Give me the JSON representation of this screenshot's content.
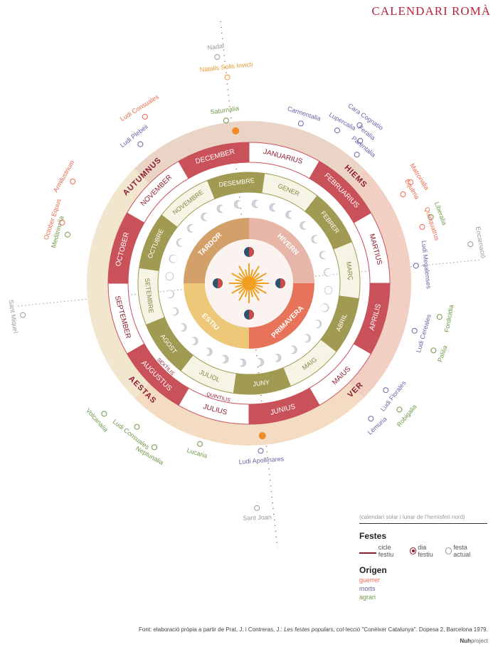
{
  "header": {
    "title": "CALENDARI ROMÀ"
  },
  "colors": {
    "winter": "#c9515a",
    "spring": "#c9515a",
    "summer": "#f0e2c2",
    "autumn": "#c9515a",
    "outerBand": "#e8c9b4",
    "catalanBand": "#a19a53",
    "guerrer": "#e86a4e",
    "morts": "#6e63a8",
    "agrari": "#6f9a4a",
    "cicle": "#8b1e2e",
    "sun": "#f0a020"
  },
  "seasons_latin": [
    {
      "label": "HIEMS"
    },
    {
      "label": "VER"
    },
    {
      "label": "AESTAS"
    },
    {
      "label": "AUTUMNUS"
    }
  ],
  "months_latin": [
    "JANUARIUS",
    "FEBRUARIUS",
    "MARTIUS",
    "APRILIS",
    "MAIUS",
    "JUNIUS",
    "JULIUS",
    "AUGUSTUS",
    "SEPTEMBER",
    "OCTOBER",
    "NOVEMBER",
    "DECEMBER"
  ],
  "months_renamed": [
    {
      "label": "QUINTILIS",
      "month": 6
    },
    {
      "label": "SEXTILIS",
      "month": 7
    }
  ],
  "months_catalan": [
    "GENER",
    "FEBRER",
    "MARÇ",
    "ABRIL",
    "MAIG",
    "JUNY",
    "JULIOL",
    "AGOST",
    "SETEMBRE",
    "OCTUBRE",
    "NOVEMBRE",
    "DESEMBRE"
  ],
  "seasons_catalan": [
    "HIVERN",
    "PRIMAVERA",
    "ESTIU",
    "TARDOR"
  ],
  "festivals": [
    {
      "label": "Nadal",
      "color": "#999999"
    },
    {
      "label": "Natalis Solis Invicti",
      "color": "#e89a2e"
    },
    {
      "label": "Ludi Consuales",
      "color": "#e86a4e"
    },
    {
      "label": "Saturnalia",
      "color": "#6f9a4a"
    },
    {
      "label": "Carmentalia",
      "color": "#6e63a8"
    },
    {
      "label": "Cara Cognatio",
      "color": "#6e63a8"
    },
    {
      "label": "Lupercalia",
      "color": "#6e63a8"
    },
    {
      "label": "Feralia",
      "color": "#6e63a8"
    },
    {
      "label": "Parentalia",
      "color": "#6e63a8"
    },
    {
      "label": "Matronalia",
      "color": "#e86a4e"
    },
    {
      "label": "Equirria",
      "color": "#e86a4e"
    },
    {
      "label": "Liberalia",
      "color": "#6f9a4a"
    },
    {
      "label": "Quinquatrus",
      "color": "#e86a4e"
    },
    {
      "label": "Encarnació",
      "color": "#999999"
    },
    {
      "label": "Ludi Megalenses",
      "color": "#6e63a8"
    },
    {
      "label": "Fordicidia",
      "color": "#6f9a4a"
    },
    {
      "label": "Ludi Cereales",
      "color": "#6e63a8"
    },
    {
      "label": "Palilia",
      "color": "#6f9a4a"
    },
    {
      "label": "Ludi Florales",
      "color": "#6e63a8"
    },
    {
      "label": "Robigalia",
      "color": "#6f9a4a"
    },
    {
      "label": "Lemuria",
      "color": "#6e63a8"
    },
    {
      "label": "Ludi Apollinares",
      "color": "#6e63a8"
    },
    {
      "label": "Sant Joan",
      "color": "#999999"
    },
    {
      "label": "Lucaria",
      "color": "#6f9a4a"
    },
    {
      "label": "Neptunalia",
      "color": "#6f9a4a"
    },
    {
      "label": "Ludi Consuales",
      "color": "#6f9a4a"
    },
    {
      "label": "Volcanalia",
      "color": "#6f9a4a"
    },
    {
      "label": "Sant Miquel",
      "color": "#999999"
    },
    {
      "label": "Meditrinalia",
      "color": "#6f9a4a"
    },
    {
      "label": "October Equus",
      "color": "#e86a4e"
    },
    {
      "label": "Armilustrium",
      "color": "#e86a4e"
    },
    {
      "label": "Ludi Plebeii",
      "color": "#6e63a8"
    }
  ],
  "legend": {
    "note": "(calendari solar i lunar de l'hemisferi nord)",
    "festes_title": "Festes",
    "items": [
      "cicle festiu",
      "dia festiu",
      "festa actual"
    ],
    "origen_title": "Origen",
    "origens": [
      {
        "label": "guerrer",
        "color": "#e86a4e"
      },
      {
        "label": "morts",
        "color": "#6e63a8"
      },
      {
        "label": "agrari",
        "color": "#6f9a4a"
      }
    ]
  },
  "footer": {
    "source_prefix": "Font:  elaboració pròpia a partir de Prat, J. i Contreras, J.: ",
    "source_book": "Les festes populars",
    "source_suffix": ", col·lecció \"Conèixer Catalunya\". Dopesa 2, Barcelona 1979.",
    "brand_bold": "Nuh",
    "brand_rest": "project"
  }
}
